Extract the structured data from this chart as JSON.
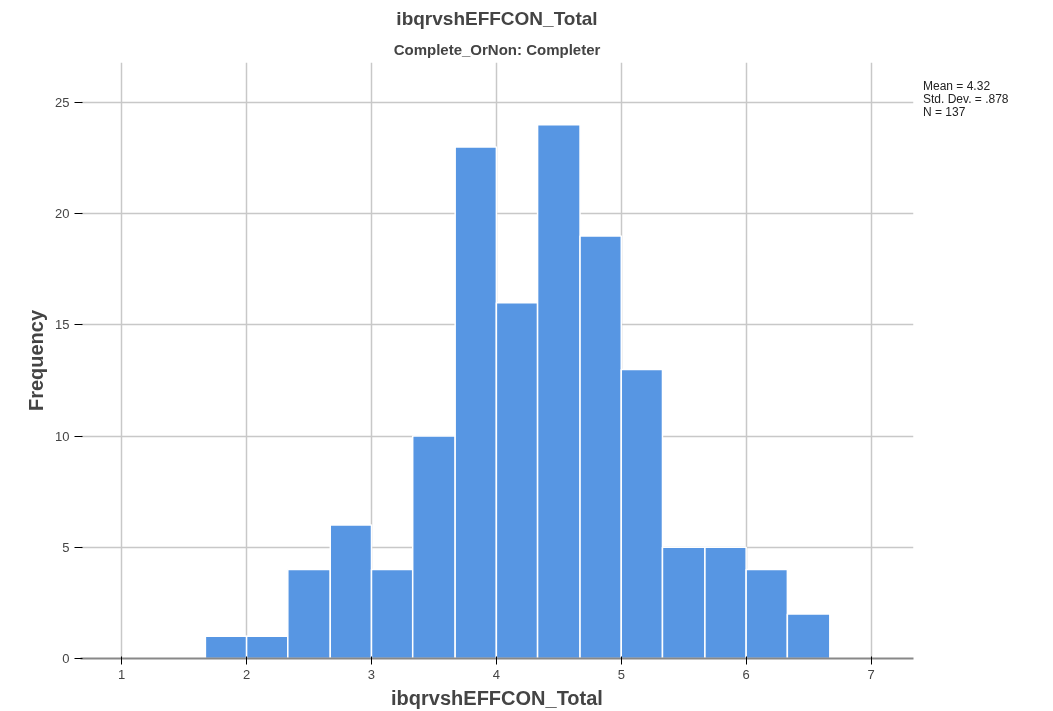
{
  "chart_data": {
    "type": "histogram",
    "title": "ibqrvshEFFCON_Total",
    "subtitle": "Complete_OrNon: Completer",
    "xlabel": "ibqrvshEFFCON_Total",
    "ylabel": "Frequency",
    "bins": [
      1.67,
      2,
      2.33,
      2.67,
      3,
      3.33,
      3.67,
      4,
      4.33,
      4.67,
      5,
      5.33,
      5.67,
      6,
      6.33,
      6.67
    ],
    "values": [
      1,
      1,
      4,
      6,
      4,
      10,
      23,
      16,
      24,
      19,
      13,
      5,
      5,
      4,
      2
    ],
    "color": "#5796e3",
    "xlim": [
      0.67,
      7.34
    ],
    "xticks": [
      1,
      2,
      3,
      4,
      5,
      6,
      7
    ],
    "ylim": [
      0,
      26.8
    ],
    "yticks": [
      0,
      5,
      10,
      15,
      20,
      25
    ],
    "grid": true,
    "annotations": [
      "Mean = 4.32",
      "Std. Dev. = .878",
      "N = 137"
    ]
  }
}
